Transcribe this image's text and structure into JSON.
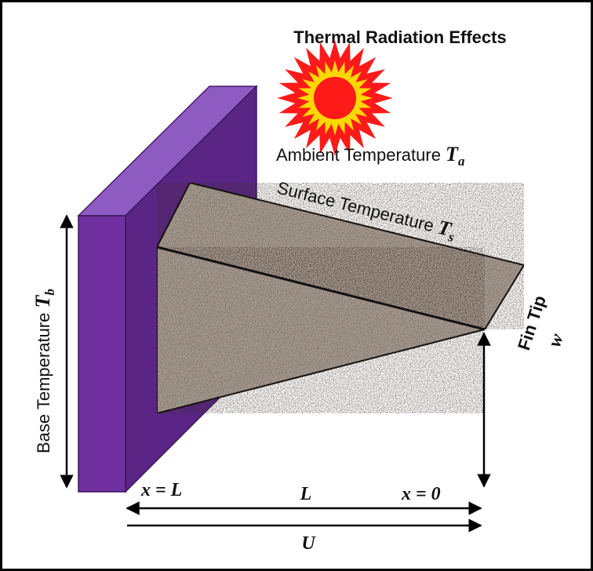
{
  "title": "Thermal Radiation Effects",
  "ambient": {
    "text": "Ambient Temperature ",
    "var": "T",
    "sub": "a"
  },
  "surface": {
    "text": "Surface Temperature ",
    "var": "T",
    "sub": "s"
  },
  "base": {
    "text": "Base Temperature ",
    "var": "T",
    "sub": "b"
  },
  "fin_tip": {
    "text": "Fin Tip",
    "var": "w"
  },
  "x_left": "x = L",
  "x_right": "x = 0",
  "length": "L",
  "width_u": "U",
  "colors": {
    "wall_front": "#7030A0",
    "wall_top": "#8E5BC2",
    "wall_side": "#5A2585",
    "fin_texture": "#a99d92",
    "sun_outer": "#FF1A1A",
    "sun_inner": "#FFD700",
    "frame": "#000000"
  }
}
